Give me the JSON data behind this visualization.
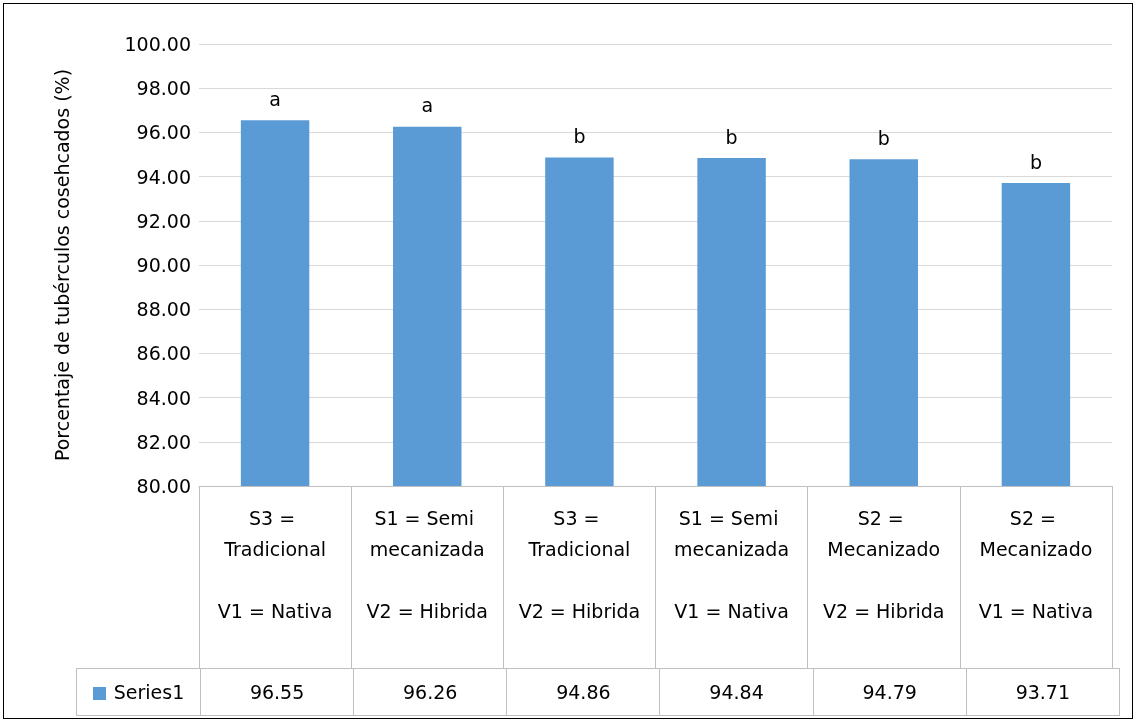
{
  "chart_data": {
    "type": "bar",
    "ylabel": "Porcentaje de tubérculos cosehcados (%)",
    "categories": [
      "S3 = Tradicional\n\nV1 = Nativa",
      "S1 = Semi mecanizada\n\nV2 = Hibrida",
      "S3 = Tradicional\n\nV2 = Hibrida",
      "S1 = Semi mecanizada\n\nV1 = Nativa",
      "S2 = Mecanizado\n\nV2 = Hibrida",
      "S2 = Mecanizado\n\nV1 = Nativa"
    ],
    "series": [
      {
        "name": "Series1",
        "color": "#5b9bd5",
        "values": [
          96.55,
          96.26,
          94.86,
          94.84,
          94.79,
          93.71
        ]
      }
    ],
    "ylim": [
      80,
      100
    ],
    "yticks": [
      {
        "value": 80,
        "label": "80.00"
      },
      {
        "value": 82,
        "label": "82.00"
      },
      {
        "value": 84,
        "label": "84.00"
      },
      {
        "value": 86,
        "label": "86.00"
      },
      {
        "value": 88,
        "label": "88.00"
      },
      {
        "value": 90,
        "label": "90.00"
      },
      {
        "value": 92,
        "label": "92.00"
      },
      {
        "value": 94,
        "label": "94.00"
      },
      {
        "value": 96,
        "label": "96.00"
      },
      {
        "value": 98,
        "label": "98.00"
      },
      {
        "value": 100,
        "label": "100.00"
      }
    ],
    "annotations": [
      "a",
      "a",
      "b",
      "b",
      "b",
      "b"
    ],
    "data_labels": true,
    "grid": "y",
    "legend": "bottom left"
  }
}
